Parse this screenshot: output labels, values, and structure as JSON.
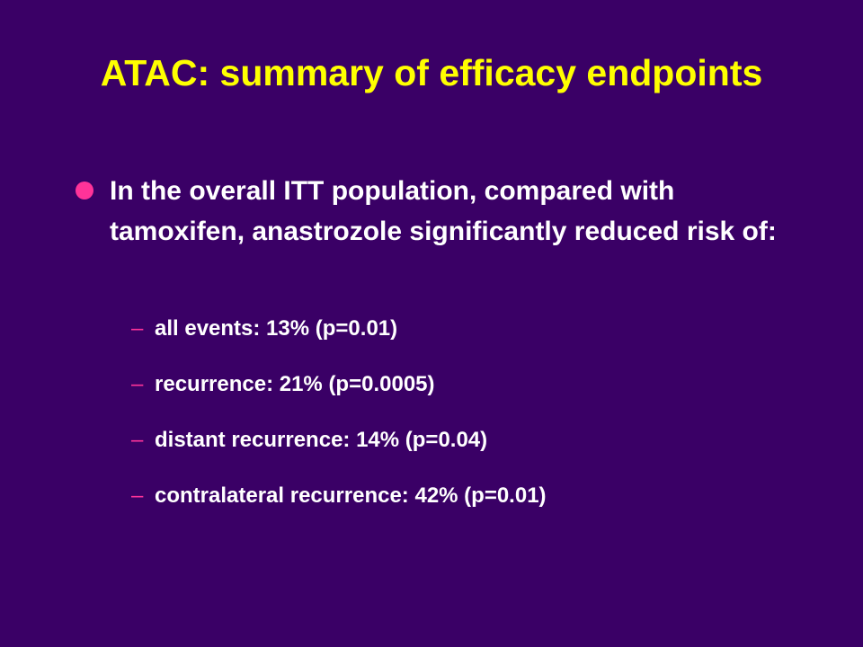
{
  "title": "ATAC: summary of efficacy endpoints",
  "bullet": {
    "text": "In the overall ITT population, compared with tamoxifen, anastrozole significantly reduced risk of:",
    "subitems": [
      "all events: 13% (p=0.01)",
      "recurrence: 21% (p=0.0005)",
      "distant recurrence: 14% (p=0.04)",
      "contralateral recurrence: 42% (p=0.01)"
    ]
  }
}
